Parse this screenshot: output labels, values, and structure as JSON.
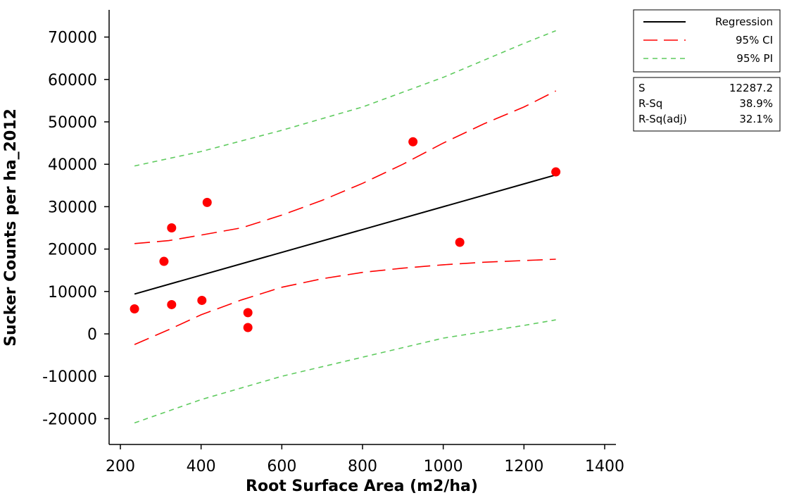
{
  "chart_data": {
    "type": "scatter",
    "xlabel": "Root Surface Area (m2/ha)",
    "ylabel": "Sucker Counts per ha_2012",
    "xlim": [
      200,
      1400
    ],
    "ylim": [
      -27500,
      77000
    ],
    "x_ticks": [
      200,
      400,
      600,
      800,
      1000,
      1200,
      1400
    ],
    "y_ticks": [
      -20000,
      -10000,
      0,
      10000,
      20000,
      30000,
      40000,
      50000,
      60000,
      70000
    ],
    "grid": false,
    "legend_position": "top-right",
    "points": [
      {
        "x": 235,
        "y": 5900
      },
      {
        "x": 308,
        "y": 17100
      },
      {
        "x": 327,
        "y": 25000
      },
      {
        "x": 327,
        "y": 6900
      },
      {
        "x": 402,
        "y": 7900
      },
      {
        "x": 415,
        "y": 31000
      },
      {
        "x": 516,
        "y": 5000
      },
      {
        "x": 516,
        "y": 1500
      },
      {
        "x": 925,
        "y": 45300
      },
      {
        "x": 1041,
        "y": 21600
      },
      {
        "x": 1279,
        "y": 38200
      }
    ],
    "series": [
      {
        "name": "Regression",
        "color": "#000000",
        "style": "solid",
        "x": [
          235,
          1279
        ],
        "y": [
          9400,
          37500
        ]
      },
      {
        "name": "95% CI",
        "color": "#ff0000",
        "style": "long-dash",
        "x": [
          235,
          320,
          400,
          500,
          600,
          700,
          800,
          900,
          1000,
          1100,
          1200,
          1279
        ],
        "y": [
          21300,
          22000,
          23300,
          25000,
          28000,
          31500,
          35500,
          40000,
          45000,
          49500,
          53500,
          57300
        ]
      },
      {
        "name": "95% CI",
        "color": "#ff0000",
        "style": "long-dash",
        "x": [
          235,
          320,
          400,
          500,
          600,
          700,
          800,
          900,
          1000,
          1100,
          1200,
          1279
        ],
        "y": [
          -2500,
          1000,
          4500,
          8000,
          11000,
          13000,
          14500,
          15500,
          16300,
          16900,
          17300,
          17600
        ]
      },
      {
        "name": "95% PI",
        "color": "#5fcb5f",
        "style": "short-dash",
        "x": [
          235,
          400,
          600,
          800,
          1000,
          1200,
          1279
        ],
        "y": [
          39600,
          43000,
          48000,
          53500,
          60500,
          68500,
          71500
        ]
      },
      {
        "name": "95% PI",
        "color": "#5fcb5f",
        "style": "short-dash",
        "x": [
          235,
          400,
          600,
          800,
          1000,
          1200,
          1279
        ],
        "y": [
          -21000,
          -15500,
          -10000,
          -5500,
          -1000,
          2000,
          3300
        ]
      }
    ],
    "point_color": "#ff0000"
  },
  "legend": {
    "items": [
      {
        "label": "Regression",
        "color": "#000000",
        "style": "solid"
      },
      {
        "label": "95% CI",
        "color": "#ff0000",
        "style": "long-dash"
      },
      {
        "label": "95% PI",
        "color": "#5fcb5f",
        "style": "short-dash"
      }
    ],
    "stats": [
      {
        "label": "S",
        "value": "12287.2"
      },
      {
        "label": "R-Sq",
        "value": "38.9%"
      },
      {
        "label": "R-Sq(adj)",
        "value": "32.1%"
      }
    ]
  }
}
